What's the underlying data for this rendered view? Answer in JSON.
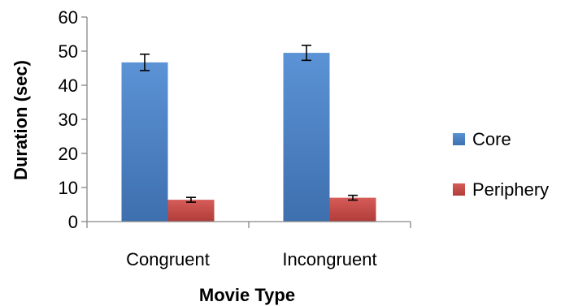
{
  "chart_data": {
    "type": "bar",
    "title": "",
    "xlabel": "Movie Type",
    "ylabel": "Duration (sec)",
    "categories": [
      "Congruent",
      "Incongruent"
    ],
    "series": [
      {
        "name": "Core",
        "values": [
          46.7,
          49.5
        ],
        "error": [
          2.4,
          2.2
        ],
        "color": "#4a7ebb"
      },
      {
        "name": "Periphery",
        "values": [
          6.4,
          7.0
        ],
        "error": [
          0.7,
          0.7
        ],
        "color": "#be4b48"
      }
    ],
    "ylim": [
      0,
      60
    ],
    "yticks": [
      0,
      10,
      20,
      30,
      40,
      50,
      60
    ],
    "grid": false,
    "legend_position": "right"
  }
}
